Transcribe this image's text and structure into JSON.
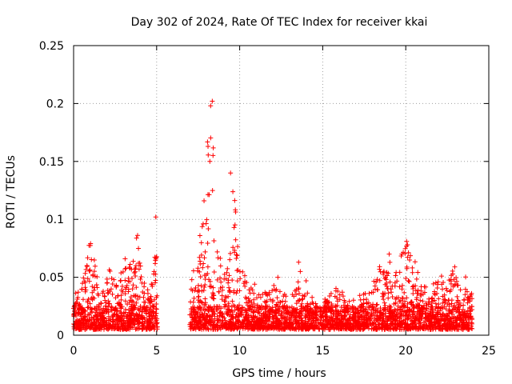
{
  "chart_data": {
    "type": "scatter",
    "title": "Day 302 of 2024, Rate Of TEC Index for receiver kkai",
    "xlabel": "GPS time / hours",
    "ylabel": "ROTI / TECUs",
    "xlim": [
      0,
      25
    ],
    "ylim": [
      0,
      0.25
    ],
    "xticks": [
      0,
      5,
      10,
      15,
      20,
      25
    ],
    "yticks": [
      0,
      0.05,
      0.1,
      0.15,
      0.2,
      0.25
    ],
    "grid": true,
    "marker": "+",
    "color": "#ff0000",
    "gap_hours": [
      5.05,
      7.0
    ],
    "series": [
      {
        "name": "ROTI",
        "envelope": [
          [
            0.0,
            0.035
          ],
          [
            0.5,
            0.04
          ],
          [
            1.0,
            0.082
          ],
          [
            1.3,
            0.06
          ],
          [
            1.6,
            0.035
          ],
          [
            2.0,
            0.045
          ],
          [
            2.2,
            0.068
          ],
          [
            2.5,
            0.05
          ],
          [
            2.7,
            0.045
          ],
          [
            3.0,
            0.075
          ],
          [
            3.3,
            0.055
          ],
          [
            3.6,
            0.07
          ],
          [
            3.8,
            0.092
          ],
          [
            4.1,
            0.05
          ],
          [
            4.5,
            0.04
          ],
          [
            4.8,
            0.05
          ],
          [
            5.0,
            0.1
          ],
          [
            7.0,
            0.04
          ],
          [
            7.3,
            0.065
          ],
          [
            7.5,
            0.075
          ],
          [
            7.7,
            0.095
          ],
          [
            7.9,
            0.13
          ],
          [
            8.1,
            0.18
          ],
          [
            8.3,
            0.2
          ],
          [
            8.5,
            0.16
          ],
          [
            8.7,
            0.1
          ],
          [
            8.9,
            0.07
          ],
          [
            9.1,
            0.055
          ],
          [
            9.3,
            0.08
          ],
          [
            9.6,
            0.14
          ],
          [
            9.8,
            0.1
          ],
          [
            10.0,
            0.06
          ],
          [
            10.5,
            0.045
          ],
          [
            11.0,
            0.04
          ],
          [
            11.5,
            0.035
          ],
          [
            12.0,
            0.045
          ],
          [
            12.5,
            0.035
          ],
          [
            13.0,
            0.03
          ],
          [
            13.5,
            0.05
          ],
          [
            14.0,
            0.035
          ],
          [
            14.5,
            0.03
          ],
          [
            15.0,
            0.03
          ],
          [
            15.5,
            0.035
          ],
          [
            15.9,
            0.045
          ],
          [
            16.5,
            0.03
          ],
          [
            17.0,
            0.03
          ],
          [
            17.5,
            0.035
          ],
          [
            18.0,
            0.045
          ],
          [
            18.5,
            0.06
          ],
          [
            18.8,
            0.068
          ],
          [
            19.2,
            0.055
          ],
          [
            19.6,
            0.065
          ],
          [
            20.0,
            0.08
          ],
          [
            20.3,
            0.07
          ],
          [
            20.7,
            0.058
          ],
          [
            21.0,
            0.045
          ],
          [
            21.5,
            0.04
          ],
          [
            22.0,
            0.05
          ],
          [
            22.4,
            0.045
          ],
          [
            22.8,
            0.055
          ],
          [
            23.2,
            0.045
          ],
          [
            23.6,
            0.055
          ],
          [
            24.0,
            0.035
          ]
        ],
        "floor": 0.005,
        "outliers": [
          [
            13.55,
            0.063
          ],
          [
            13.65,
            0.055
          ],
          [
            14.0,
            0.047
          ],
          [
            12.3,
            0.05
          ],
          [
            10.9,
            0.044
          ],
          [
            9.45,
            0.14
          ],
          [
            8.35,
            0.202
          ],
          [
            8.25,
            0.198
          ],
          [
            4.95,
            0.102
          ],
          [
            20.05,
            0.081
          ],
          [
            19.0,
            0.07
          ],
          [
            22.95,
            0.059
          ]
        ]
      }
    ]
  }
}
